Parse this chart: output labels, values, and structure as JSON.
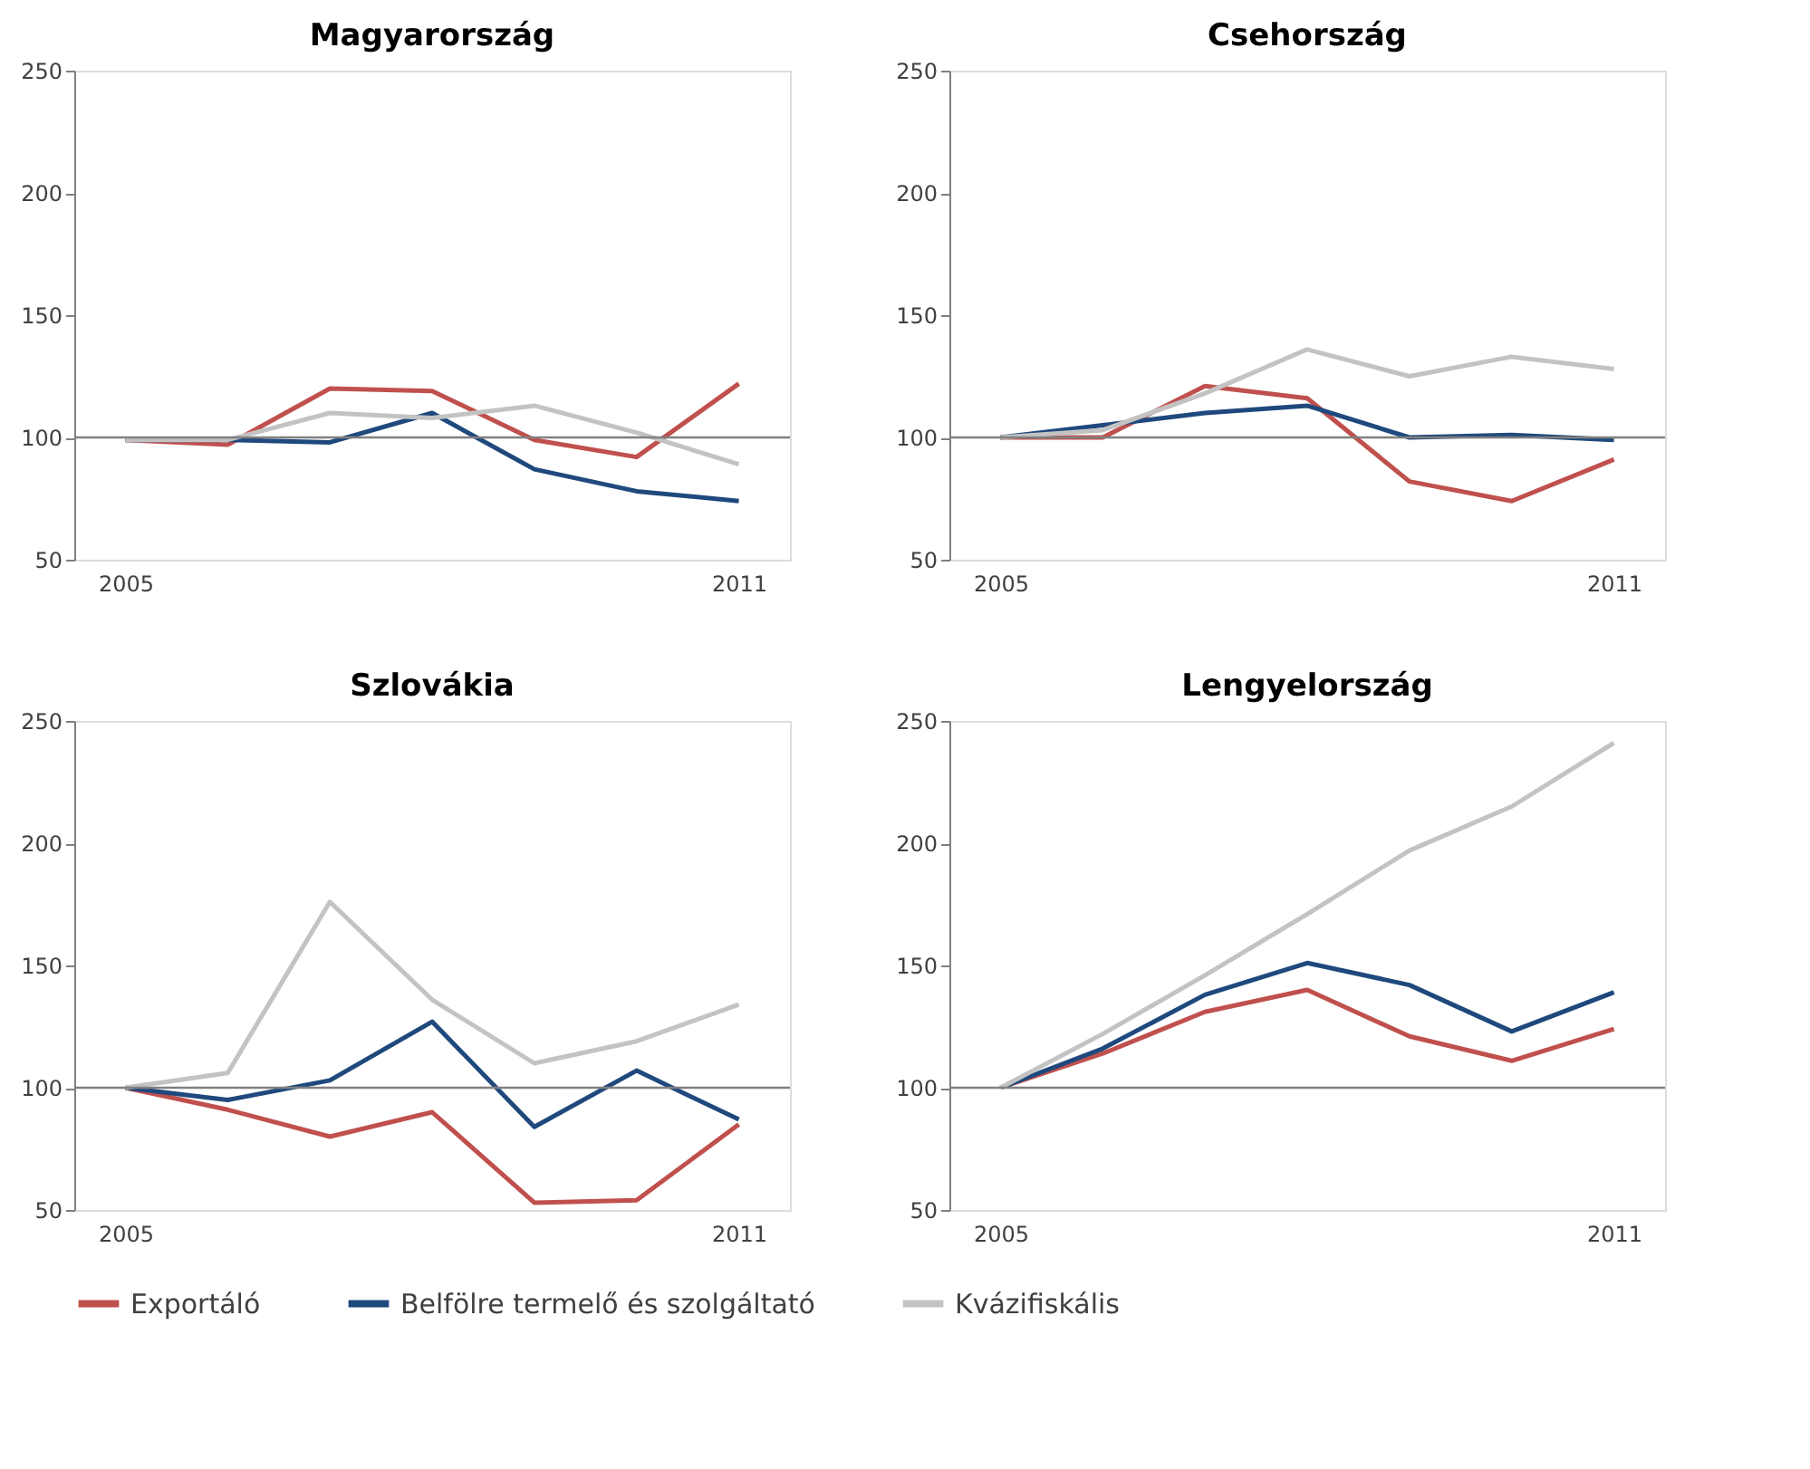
{
  "chart_data": [
    {
      "type": "line",
      "title": "Magyarország",
      "categories": [
        "2005",
        null,
        null,
        null,
        null,
        null,
        "2011"
      ],
      "ylim": [
        50,
        250
      ],
      "yticks": [
        50,
        100,
        150,
        200,
        250
      ],
      "grid": false,
      "legend": "bottom",
      "ref_lines": [
        {
          "axis": "y",
          "value": 100,
          "color": "#808080"
        }
      ],
      "series": [
        {
          "name": "Exportáló",
          "color": "#c0504d",
          "values": [
            99,
            97,
            120,
            119,
            99,
            92,
            122
          ]
        },
        {
          "name": "Belfölre termelő és szolgáltató",
          "color": "#1f497d",
          "values": [
            99,
            99,
            98,
            110,
            87,
            78,
            74
          ]
        },
        {
          "name": "Kvázifiskális",
          "color": "#c3c3c3",
          "values": [
            99,
            99,
            110,
            108,
            113,
            102,
            89
          ]
        }
      ]
    },
    {
      "type": "line",
      "title": "Csehország",
      "categories": [
        "2005",
        null,
        null,
        null,
        null,
        null,
        "2011"
      ],
      "ylim": [
        50,
        250
      ],
      "yticks": [
        50,
        100,
        150,
        200,
        250
      ],
      "grid": false,
      "legend": "bottom",
      "ref_lines": [
        {
          "axis": "y",
          "value": 100,
          "color": "#808080"
        }
      ],
      "series": [
        {
          "name": "Exportáló",
          "color": "#c0504d",
          "values": [
            100,
            100,
            121,
            116,
            82,
            74,
            91
          ]
        },
        {
          "name": "Belfölre termelő és szolgáltató",
          "color": "#1f497d",
          "values": [
            100,
            105,
            110,
            113,
            100,
            101,
            99
          ]
        },
        {
          "name": "Kvázifiskális",
          "color": "#c3c3c3",
          "values": [
            100,
            103,
            118,
            136,
            125,
            133,
            128
          ]
        }
      ]
    },
    {
      "type": "line",
      "title": "Szlovákia",
      "categories": [
        "2005",
        null,
        null,
        null,
        null,
        null,
        "2011"
      ],
      "ylim": [
        50,
        250
      ],
      "yticks": [
        50,
        100,
        150,
        200,
        250
      ],
      "grid": false,
      "legend": "bottom",
      "ref_lines": [
        {
          "axis": "y",
          "value": 100,
          "color": "#808080"
        }
      ],
      "series": [
        {
          "name": "Exportáló",
          "color": "#c0504d",
          "values": [
            100,
            91,
            80,
            90,
            53,
            54,
            85
          ]
        },
        {
          "name": "Belfölre termelő és szolgáltató",
          "color": "#1f497d",
          "values": [
            100,
            95,
            103,
            127,
            84,
            107,
            87
          ]
        },
        {
          "name": "Kvázifiskális",
          "color": "#c3c3c3",
          "values": [
            100,
            106,
            176,
            136,
            110,
            119,
            134
          ]
        }
      ]
    },
    {
      "type": "line",
      "title": "Lengyelország",
      "categories": [
        "2005",
        null,
        null,
        null,
        null,
        null,
        "2011"
      ],
      "ylim": [
        50,
        250
      ],
      "yticks": [
        50,
        100,
        150,
        200,
        250
      ],
      "grid": false,
      "legend": "bottom",
      "ref_lines": [
        {
          "axis": "y",
          "value": 100,
          "color": "#808080"
        }
      ],
      "series": [
        {
          "name": "Exportáló",
          "color": "#c0504d",
          "values": [
            100,
            114,
            131,
            140,
            121,
            111,
            124
          ]
        },
        {
          "name": "Belfölre termelő és szolgáltató",
          "color": "#1f497d",
          "values": [
            100,
            116,
            138,
            151,
            142,
            123,
            139
          ]
        },
        {
          "name": "Kvázifiskális",
          "color": "#c3c3c3",
          "values": [
            100,
            122,
            146,
            171,
            197,
            215,
            241
          ]
        }
      ]
    }
  ]
}
